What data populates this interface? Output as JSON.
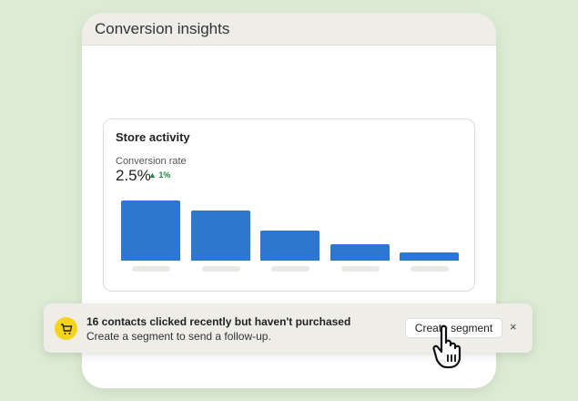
{
  "window": {
    "title": "Conversion insights"
  },
  "card": {
    "title": "Store activity",
    "metric_label": "Conversion rate",
    "metric_value": "2.5%",
    "delta": "▲ 1%",
    "delta_color": "#1c8a3c"
  },
  "chart_data": {
    "type": "bar",
    "values": [
      66,
      55,
      33,
      18,
      9
    ],
    "color": "#2d77cf",
    "categories_shown": false
  },
  "toast": {
    "title": "16 contacts clicked recently but haven't purchased",
    "subtitle": "Create a segment to send a follow-up.",
    "button": "Create segment",
    "close": "×",
    "icon": "cart-icon"
  }
}
